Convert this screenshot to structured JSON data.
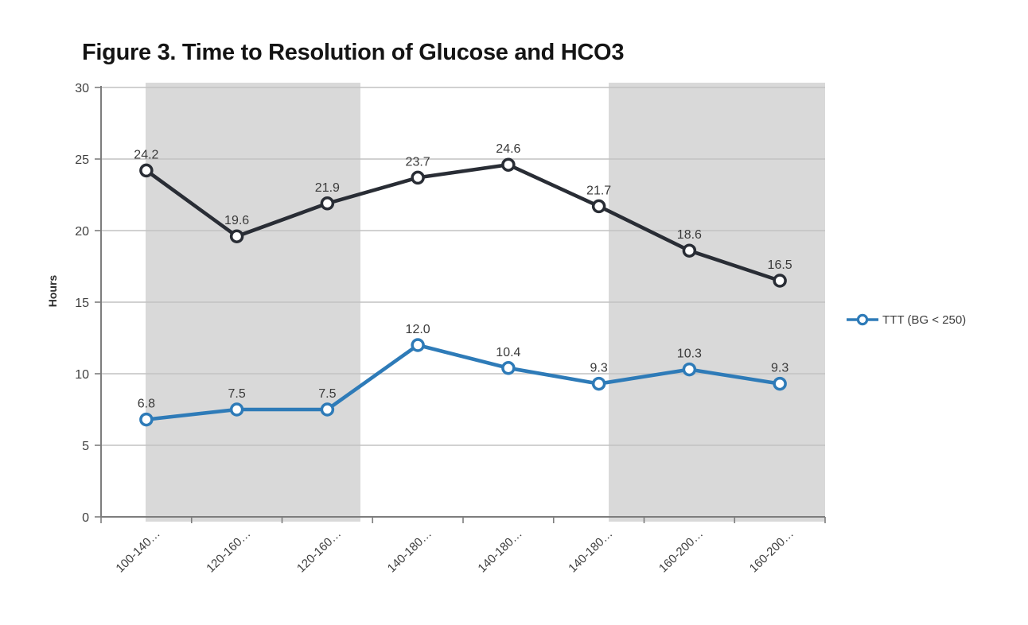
{
  "page": {
    "title": "Figure 3. Time to Resolution of Glucose and HCO3"
  },
  "legend": {
    "position": "right",
    "items": [
      {
        "label": "TTT (BG < 250)",
        "color": "#2e7bb8"
      }
    ]
  },
  "chart_data": {
    "type": "line",
    "title": "Figure 3. Time to Resolution of Glucose and HCO3",
    "xlabel": "",
    "ylabel": "Hours",
    "ylim": [
      0,
      30
    ],
    "yticks": [
      0,
      5,
      10,
      15,
      20,
      25,
      30
    ],
    "grid": true,
    "categories": [
      "100-140…",
      "120-160…",
      "120-160…",
      "140-180…",
      "140-180…",
      "140-180…",
      "160-200…",
      "160-200…"
    ],
    "series": [
      {
        "id": "dark-series",
        "color": "#292d35",
        "values": [
          24.2,
          19.6,
          21.9,
          23.7,
          24.6,
          21.7,
          18.6,
          16.5
        ],
        "point_labels": [
          "24.2",
          "19.6",
          "21.9",
          "23.7",
          "24.6",
          "21.7",
          "18.6",
          "16.5"
        ]
      },
      {
        "id": "ttt-series",
        "legend_label": "TTT (BG < 250)",
        "color": "#2e7bb8",
        "values": [
          6.8,
          7.5,
          7.5,
          12.0,
          10.4,
          9.3,
          10.3,
          9.3
        ],
        "point_labels": [
          "6.8",
          "7.5",
          "7.5",
          "12.0",
          "10.4",
          "9.3",
          "10.3",
          "9.3"
        ]
      }
    ],
    "shaded_bands": [
      {
        "from_frac": 0.0615,
        "to_frac": 0.3582
      },
      {
        "from_frac": 0.7011,
        "to_frac": 1.0
      }
    ],
    "band_color": "#d9d9d9",
    "gridline_color": "#c2c2c2",
    "axis_color": "#7d7d7d",
    "tick_label_color": "#3f3f3f",
    "data_label_color": "#3a3a3a",
    "marker_fill": "#ffffff"
  }
}
